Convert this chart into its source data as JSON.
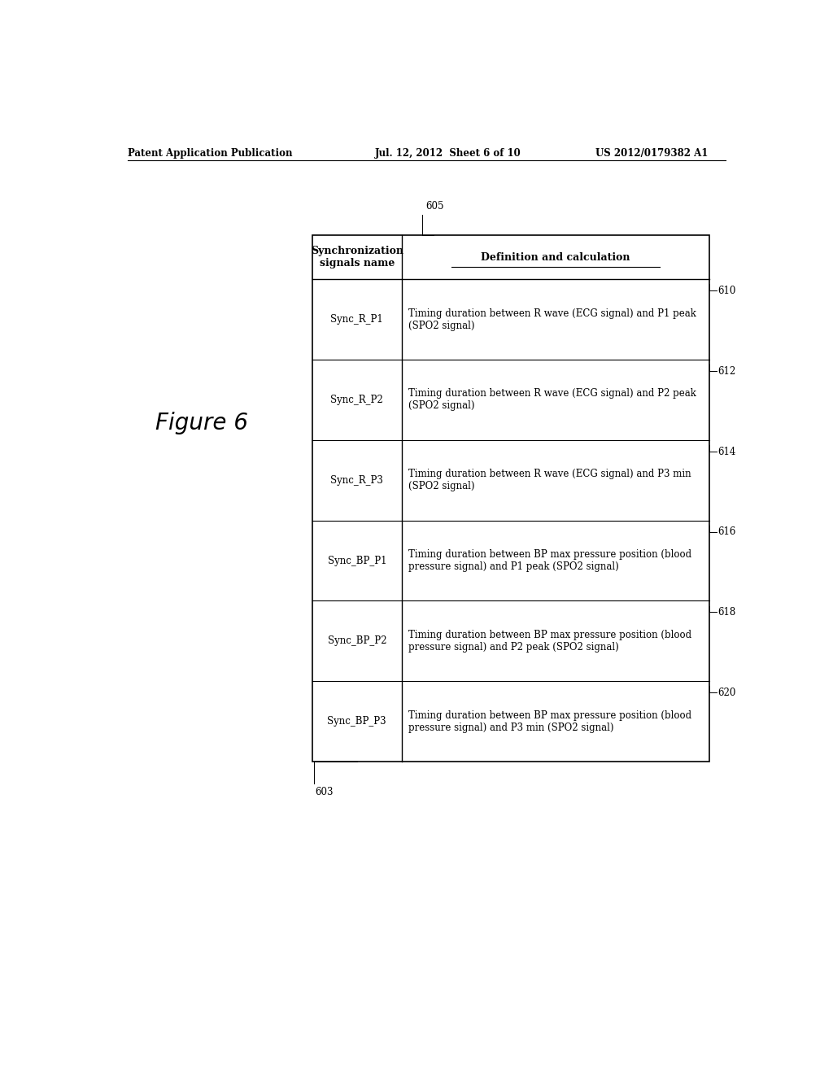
{
  "header_text_left": "Patent Application Publication",
  "header_text_mid": "Jul. 12, 2012  Sheet 6 of 10",
  "header_text_right": "US 2012/0179382 A1",
  "figure_label": "Figure 6",
  "table_label": "605",
  "col1_label": "603",
  "col1_header": "Synchronization\nsignals name",
  "col2_header": "Definition and calculation",
  "rows": [
    {
      "signal": "Sync_R_P1",
      "definition": "Timing duration between R wave (ECG signal) and P1 peak\n(SPO2 signal)",
      "ref": "610"
    },
    {
      "signal": "Sync_R_P2",
      "definition": "Timing duration between R wave (ECG signal) and P2 peak\n(SPO2 signal)",
      "ref": "612"
    },
    {
      "signal": "Sync_R_P3",
      "definition": "Timing duration between R wave (ECG signal) and P3 min\n(SPO2 signal)",
      "ref": "614"
    },
    {
      "signal": "Sync_BP_P1",
      "definition": "Timing duration between BP max pressure position (blood\npressure signal) and P1 peak (SPO2 signal)",
      "ref": "616"
    },
    {
      "signal": "Sync_BP_P2",
      "definition": "Timing duration between BP max pressure position (blood\npressure signal) and P2 peak (SPO2 signal)",
      "ref": "618"
    },
    {
      "signal": "Sync_BP_P3",
      "definition": "Timing duration between BP max pressure position (blood\npressure signal) and P3 min (SPO2 signal)",
      "ref": "620"
    }
  ],
  "background_color": "#ffffff",
  "text_color": "#000000",
  "table_border_color": "#000000",
  "font_size_header": 9,
  "font_size_body": 8.5,
  "font_size_figure_label": 20,
  "font_size_patent_header": 8.5,
  "font_size_ref": 8.5
}
